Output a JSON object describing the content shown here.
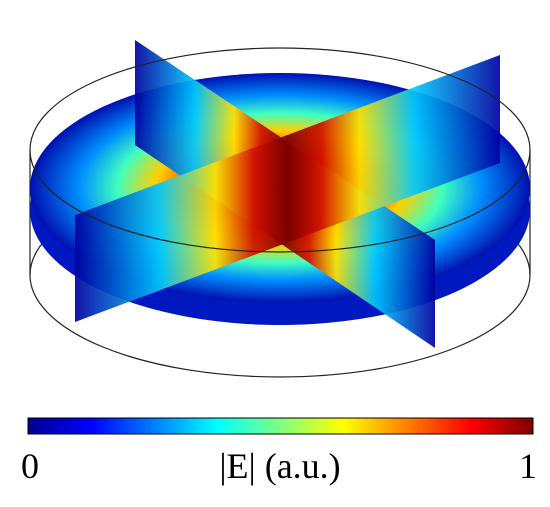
{
  "colorbar": {
    "min_label": "0",
    "label": "|E| (a.u.)",
    "max_label": "1"
  }
}
